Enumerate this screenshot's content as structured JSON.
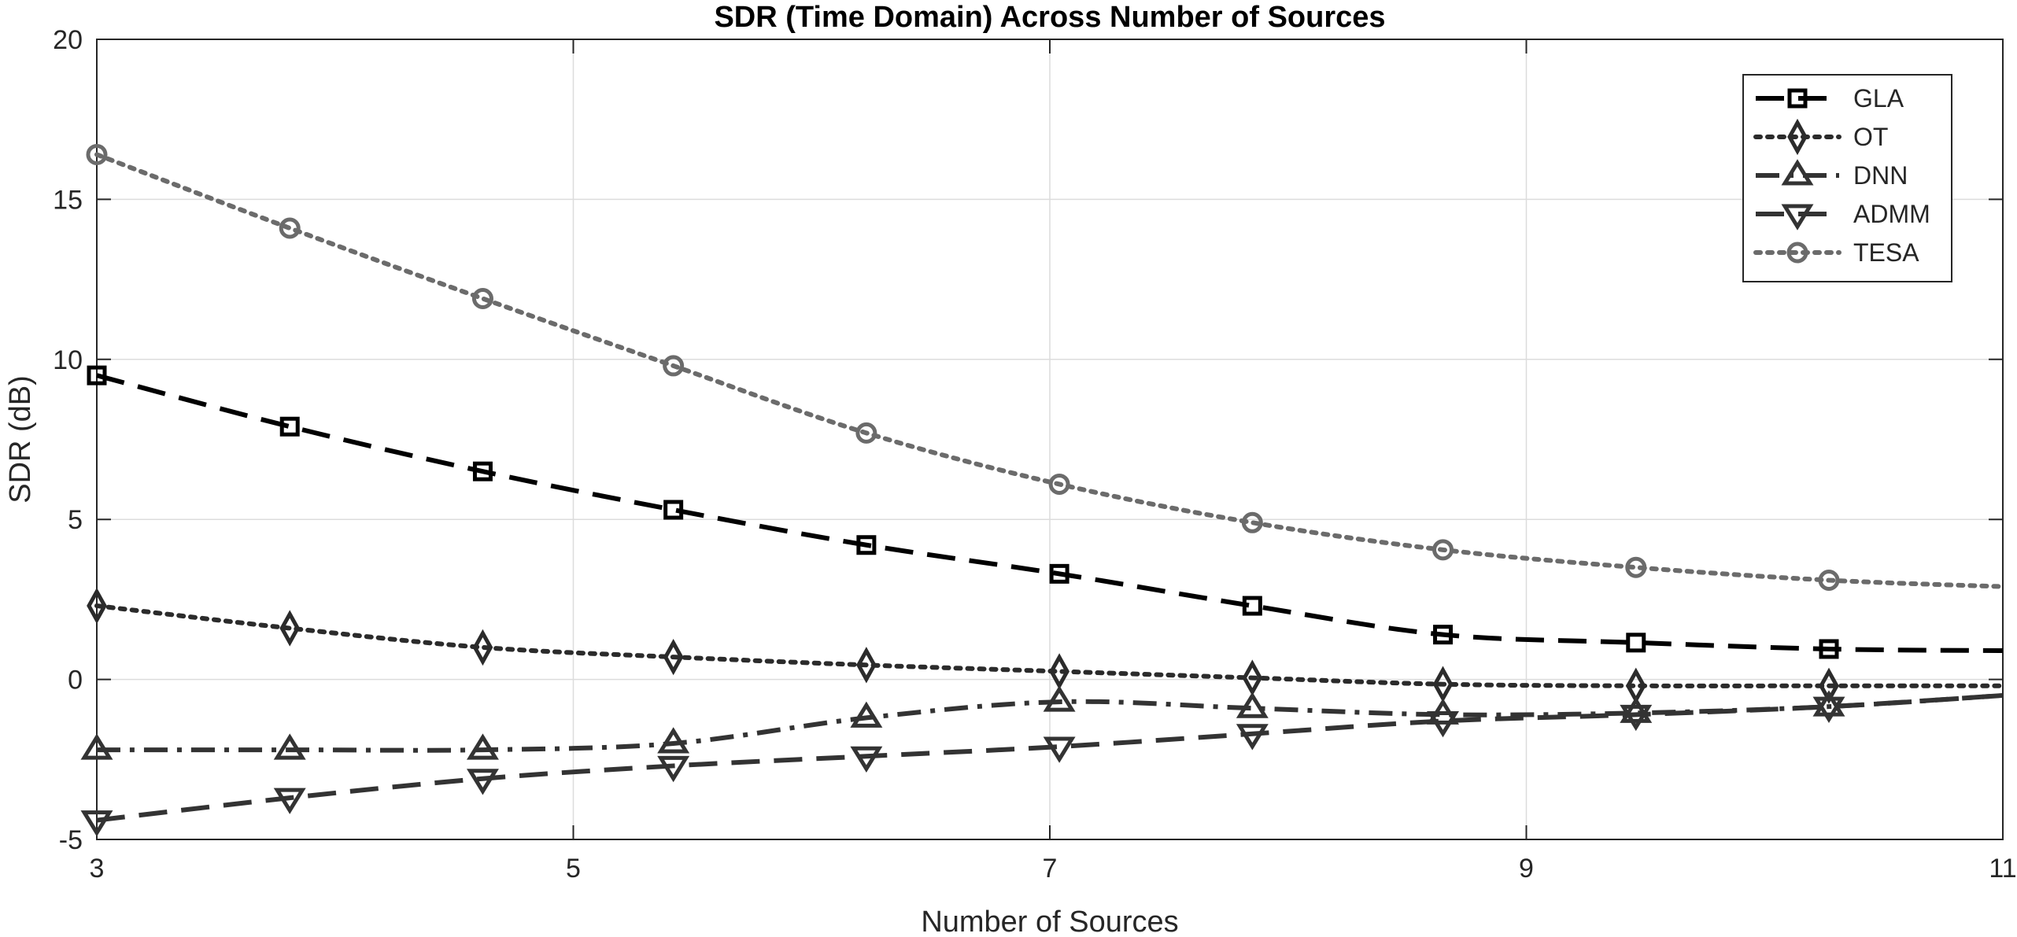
{
  "chart_data": {
    "type": "line",
    "title": "SDR (Time Domain) Across Number of Sources",
    "xlabel": "Number of Sources",
    "ylabel": "SDR (dB)",
    "xlim": [
      3,
      11
    ],
    "ylim": [
      -5,
      20
    ],
    "xticks": [
      3,
      5,
      7,
      9,
      11
    ],
    "yticks": [
      -5,
      0,
      5,
      10,
      15,
      20
    ],
    "grid": true,
    "legend_position": "top-right",
    "x": [
      3,
      3.81,
      4.62,
      5.42,
      6.23,
      7.04,
      7.85,
      8.65,
      9.46,
      10.27,
      11
    ],
    "series": [
      {
        "name": "GLA",
        "marker": "square",
        "dash": "dashed",
        "color": "#000000",
        "values": [
          9.5,
          7.9,
          6.5,
          5.3,
          4.2,
          3.3,
          2.3,
          1.4,
          1.15,
          0.95,
          0.9
        ],
        "marker_points": 10
      },
      {
        "name": "OT",
        "marker": "diamond",
        "dash": "dotted",
        "color": "#2b2b2b",
        "values": [
          2.3,
          1.6,
          1.0,
          0.7,
          0.45,
          0.25,
          0.05,
          -0.15,
          -0.2,
          -0.2,
          -0.2
        ],
        "marker_points": 10
      },
      {
        "name": "DNN",
        "marker": "triangle-up",
        "dash": "dashdot",
        "color": "#333333",
        "values": [
          -2.2,
          -2.2,
          -2.2,
          -2.0,
          -1.2,
          -0.7,
          -0.9,
          -1.1,
          -1.05,
          -0.85,
          -0.5
        ],
        "marker_points": 10
      },
      {
        "name": "ADMM",
        "marker": "triangle-down",
        "dash": "dashed",
        "color": "#333333",
        "values": [
          -4.4,
          -3.7,
          -3.1,
          -2.7,
          -2.4,
          -2.1,
          -1.7,
          -1.3,
          -1.1,
          -0.85,
          -0.5
        ],
        "marker_points": 10
      },
      {
        "name": "TESA",
        "marker": "circle",
        "dash": "dotted",
        "color": "#6b6b6b",
        "values": [
          16.4,
          14.1,
          11.9,
          9.8,
          7.7,
          6.1,
          4.9,
          4.05,
          3.5,
          3.1,
          2.9
        ],
        "marker_points": 10
      }
    ]
  }
}
